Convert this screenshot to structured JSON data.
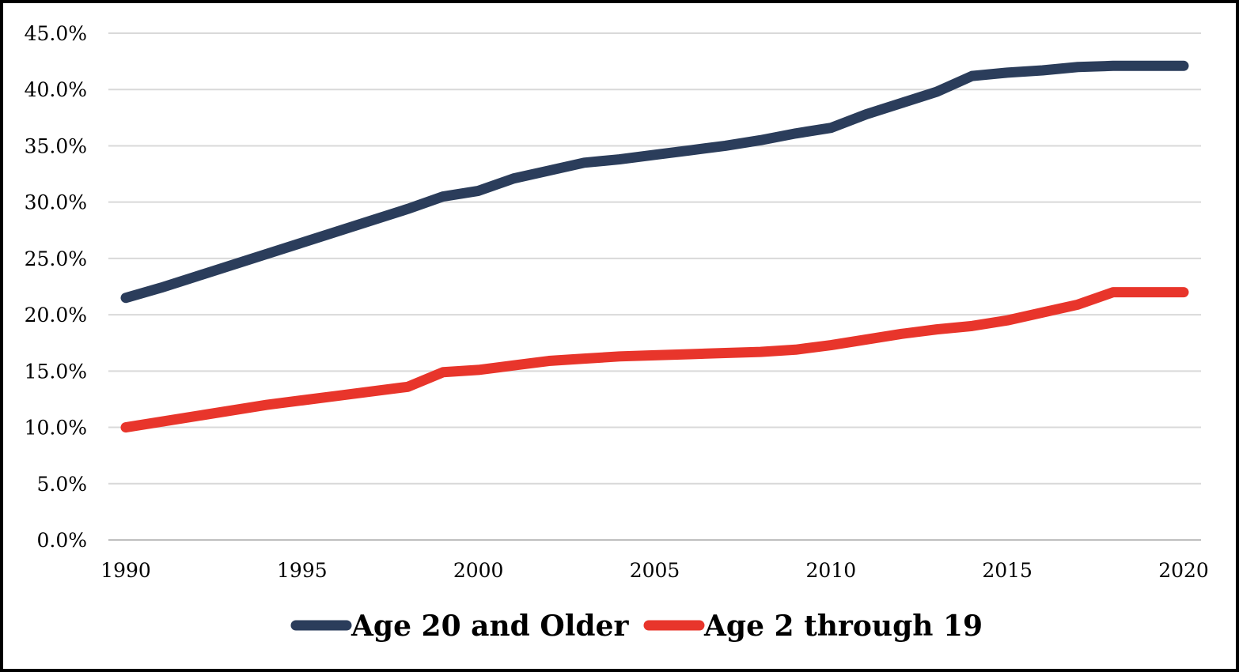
{
  "chart_data": {
    "type": "line",
    "x": [
      1990,
      1991,
      1992,
      1993,
      1994,
      1995,
      1996,
      1997,
      1998,
      1999,
      2000,
      2001,
      2002,
      2003,
      2004,
      2005,
      2006,
      2007,
      2008,
      2009,
      2010,
      2011,
      2012,
      2013,
      2014,
      2015,
      2016,
      2017,
      2018,
      2019,
      2020
    ],
    "series": [
      {
        "name": "Age 20 and Older",
        "color": "#2b3d5b",
        "values": [
          21.5,
          22.4,
          23.4,
          24.4,
          25.4,
          26.4,
          27.4,
          28.4,
          29.4,
          30.5,
          31.0,
          32.1,
          32.8,
          33.5,
          33.8,
          34.2,
          34.6,
          35.0,
          35.5,
          36.1,
          36.6,
          37.8,
          38.8,
          39.8,
          41.2,
          41.5,
          41.7,
          42.0,
          42.1,
          42.1,
          42.1
        ],
        "values_note_removed": ""
      },
      {
        "name": "Age 2 through 19",
        "color": "#e8352b",
        "values": [
          10.0,
          10.5,
          11.0,
          11.5,
          12.0,
          12.4,
          12.8,
          13.2,
          13.6,
          14.9,
          15.1,
          15.5,
          15.9,
          16.1,
          16.3,
          16.4,
          16.5,
          16.6,
          16.7,
          16.9,
          17.3,
          17.8,
          18.3,
          18.7,
          19.0,
          19.5,
          20.2,
          20.9,
          22.0,
          22.0,
          22.0
        ]
      }
    ],
    "x_ticks": [
      "1990",
      "1995",
      "2000",
      "2005",
      "2010",
      "2015",
      "2020"
    ],
    "y_ticks": [
      "0.0%",
      "5.0%",
      "10.0%",
      "15.0%",
      "20.0%",
      "25.0%",
      "30.0%",
      "35.0%",
      "40.0%",
      "45.0%"
    ],
    "xlim": [
      1990,
      2020
    ],
    "ylim": [
      0,
      45
    ],
    "grid": "horizontal",
    "legend_position": "bottom",
    "title": "",
    "xlabel": "",
    "ylabel": ""
  }
}
